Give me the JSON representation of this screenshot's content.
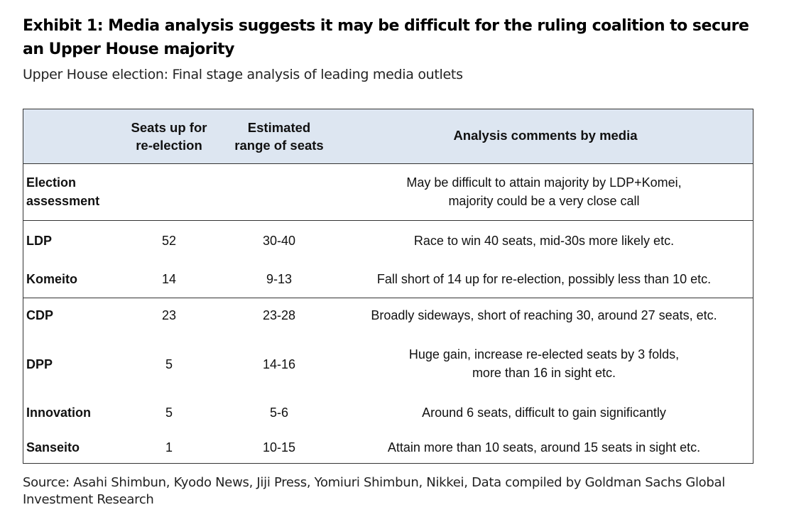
{
  "exhibit": {
    "title": "Exhibit 1: Media analysis suggests it may be difficult for the ruling coalition to secure an Upper House majority",
    "subtitle": "Upper House election: Final stage analysis of leading media outlets"
  },
  "table": {
    "headers": {
      "seats_line1": "Seats up for",
      "seats_line2": "re-election",
      "range_line1": "Estimated",
      "range_line2": "range of seats",
      "comments": "Analysis comments by media"
    },
    "assessment": {
      "label_line1": "Election",
      "label_line2": "assessment",
      "comment_line1": "May be difficult to attain majority by LDP+Komei,",
      "comment_line2": "majority could be a very close call"
    },
    "rows": [
      {
        "party": "LDP",
        "seats": "52",
        "range": "30-40",
        "comment": "Race to win 40 seats, mid-30s more likely etc."
      },
      {
        "party": "Komeito",
        "seats": "14",
        "range": "9-13",
        "comment": "Fall short of 14 up for re-election, possibly less than 10 etc."
      },
      {
        "party": "CDP",
        "seats": "23",
        "range": "23-28",
        "comment": "Broadly sideways, short of reaching 30, around 27 seats, etc."
      },
      {
        "party": "DPP",
        "seats": "5",
        "range": "14-16",
        "comment_line1": "Huge gain, increase re-elected seats by 3 folds,",
        "comment_line2": "more than 16 in sight etc."
      },
      {
        "party": "Innovation",
        "seats": "5",
        "range": "5-6",
        "comment": "Around 6 seats, difficult to gain significantly"
      },
      {
        "party": "Sanseito",
        "seats": "1",
        "range": "10-15",
        "comment": "Attain more than 10 seats, around 15 seats in sight etc."
      }
    ]
  },
  "source": "Source: Asahi Shimbun, Kyodo News, Jiji Press, Yomiuri Shimbun, Nikkei, Data compiled by Goldman Sachs Global Investment Research"
}
